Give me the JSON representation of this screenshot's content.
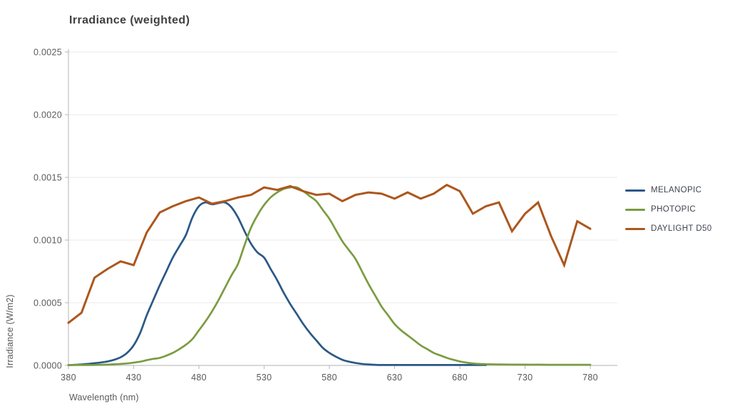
{
  "chart_data": {
    "type": "line",
    "title": "Irradiance (weighted)",
    "xlabel": "Wavelength (nm)",
    "ylabel": "Irradiance (W/m2)",
    "xlim": [
      380,
      780
    ],
    "ylim": [
      0,
      0.0025
    ],
    "x_ticks": [
      "380",
      "430",
      "480",
      "530",
      "580",
      "630",
      "680",
      "730",
      "780"
    ],
    "x_tick_values": [
      380,
      430,
      480,
      530,
      580,
      630,
      680,
      730,
      780
    ],
    "y_ticks": [
      "0.0000",
      "0.0005",
      "0.0010",
      "0.0015",
      "0.0020",
      "0.0025"
    ],
    "y_tick_values": [
      0,
      0.0005,
      0.001,
      0.0015,
      0.002,
      0.0025
    ],
    "grid": "horizontal",
    "legend_position": "right",
    "colors": {
      "axis": "#c0c0c0",
      "gridline": "#e8e8e8",
      "tick_text": "#595959",
      "title_text": "#404040",
      "legend_text": "#3f4450"
    },
    "series": [
      {
        "name": "MELANOPIC",
        "color": "#2b5886",
        "smooth": true,
        "points": [
          [
            380,
            3e-06
          ],
          [
            385,
            5e-06
          ],
          [
            390,
            8e-06
          ],
          [
            395,
            1.2e-05
          ],
          [
            400,
            1.8e-05
          ],
          [
            405,
            2.4e-05
          ],
          [
            410,
            3.2e-05
          ],
          [
            415,
            4.5e-05
          ],
          [
            420,
            6.5e-05
          ],
          [
            425,
            0.0001
          ],
          [
            430,
            0.00016
          ],
          [
            435,
            0.00026
          ],
          [
            440,
            0.0004
          ],
          [
            445,
            0.00052
          ],
          [
            450,
            0.00064
          ],
          [
            455,
            0.00075
          ],
          [
            460,
            0.00086
          ],
          [
            465,
            0.00095
          ],
          [
            470,
            0.00104
          ],
          [
            475,
            0.00118
          ],
          [
            480,
            0.00127
          ],
          [
            485,
            0.0013
          ],
          [
            490,
            0.001285
          ],
          [
            495,
            0.001295
          ],
          [
            500,
            0.0013
          ],
          [
            505,
            0.00126
          ],
          [
            510,
            0.00118
          ],
          [
            515,
            0.00107
          ],
          [
            520,
            0.00097
          ],
          [
            525,
            0.0009
          ],
          [
            530,
            0.00086
          ],
          [
            535,
            0.00077
          ],
          [
            540,
            0.00068
          ],
          [
            545,
            0.00058
          ],
          [
            550,
            0.00049
          ],
          [
            555,
            0.00041
          ],
          [
            560,
            0.00033
          ],
          [
            565,
            0.00026
          ],
          [
            570,
            0.0002
          ],
          [
            575,
            0.00014
          ],
          [
            580,
            0.0001
          ],
          [
            585,
            7e-05
          ],
          [
            590,
            4.5e-05
          ],
          [
            595,
            3e-05
          ],
          [
            600,
            2e-05
          ],
          [
            605,
            1.2e-05
          ],
          [
            610,
            8e-06
          ],
          [
            615,
            5e-06
          ],
          [
            620,
            3e-06
          ],
          [
            630,
            2e-06
          ],
          [
            640,
            1e-06
          ],
          [
            650,
            1e-06
          ],
          [
            660,
            1e-06
          ],
          [
            670,
            1e-06
          ],
          [
            680,
            1e-06
          ],
          [
            690,
            1e-06
          ],
          [
            700,
            1e-06
          ]
        ]
      },
      {
        "name": "PHOTOPIC",
        "color": "#7a9c41",
        "smooth": true,
        "points": [
          [
            380,
            2e-06
          ],
          [
            385,
            2e-06
          ],
          [
            390,
            3e-06
          ],
          [
            395,
            3e-06
          ],
          [
            400,
            4e-06
          ],
          [
            405,
            5e-06
          ],
          [
            410,
            7e-06
          ],
          [
            415,
            9e-06
          ],
          [
            420,
            1.2e-05
          ],
          [
            425,
            1.6e-05
          ],
          [
            430,
            2.2e-05
          ],
          [
            435,
            3e-05
          ],
          [
            440,
            4.2e-05
          ],
          [
            445,
            5.2e-05
          ],
          [
            450,
            6e-05
          ],
          [
            455,
            7.8e-05
          ],
          [
            460,
            0.0001
          ],
          [
            465,
            0.00013
          ],
          [
            470,
            0.000165
          ],
          [
            475,
            0.00021
          ],
          [
            480,
            0.00028
          ],
          [
            485,
            0.00035
          ],
          [
            490,
            0.00043
          ],
          [
            495,
            0.00052
          ],
          [
            500,
            0.00062
          ],
          [
            505,
            0.00072
          ],
          [
            510,
            0.00081
          ],
          [
            515,
            0.00096
          ],
          [
            520,
            0.0011
          ],
          [
            525,
            0.0012
          ],
          [
            530,
            0.00128
          ],
          [
            535,
            0.00134
          ],
          [
            540,
            0.00138
          ],
          [
            545,
            0.001408
          ],
          [
            550,
            0.00142
          ],
          [
            555,
            0.00142
          ],
          [
            560,
            0.00139
          ],
          [
            565,
            0.00135
          ],
          [
            570,
            0.00131
          ],
          [
            575,
            0.00124
          ],
          [
            580,
            0.00117
          ],
          [
            585,
            0.00108
          ],
          [
            590,
            0.00099
          ],
          [
            595,
            0.00092
          ],
          [
            600,
            0.00085
          ],
          [
            605,
            0.00075
          ],
          [
            610,
            0.00065
          ],
          [
            615,
            0.00056
          ],
          [
            620,
            0.00047
          ],
          [
            625,
            0.0004
          ],
          [
            630,
            0.00033
          ],
          [
            635,
            0.00028
          ],
          [
            640,
            0.00024
          ],
          [
            645,
            0.0002
          ],
          [
            650,
            0.00016
          ],
          [
            655,
            0.00013
          ],
          [
            660,
            0.0001
          ],
          [
            665,
            8e-05
          ],
          [
            670,
            6e-05
          ],
          [
            675,
            4.5e-05
          ],
          [
            680,
            3.2e-05
          ],
          [
            685,
            2.3e-05
          ],
          [
            690,
            1.6e-05
          ],
          [
            695,
            1.2e-05
          ],
          [
            700,
            1e-05
          ],
          [
            710,
            8e-06
          ],
          [
            720,
            7e-06
          ],
          [
            730,
            6e-06
          ],
          [
            740,
            6e-06
          ],
          [
            750,
            5e-06
          ],
          [
            760,
            5e-06
          ],
          [
            770,
            5e-06
          ],
          [
            780,
            5e-06
          ]
        ]
      },
      {
        "name": "DAYLIGHT D50",
        "color": "#ac571d",
        "smooth": false,
        "points": [
          [
            380,
            0.00034
          ],
          [
            390,
            0.00042
          ],
          [
            400,
            0.0007
          ],
          [
            410,
            0.00077
          ],
          [
            420,
            0.00083
          ],
          [
            430,
            0.0008
          ],
          [
            440,
            0.00106
          ],
          [
            450,
            0.00122
          ],
          [
            460,
            0.00127
          ],
          [
            470,
            0.00131
          ],
          [
            480,
            0.00134
          ],
          [
            490,
            0.00129
          ],
          [
            500,
            0.00131
          ],
          [
            510,
            0.00134
          ],
          [
            520,
            0.00136
          ],
          [
            530,
            0.00142
          ],
          [
            540,
            0.0014
          ],
          [
            550,
            0.00143
          ],
          [
            560,
            0.00139
          ],
          [
            570,
            0.00136
          ],
          [
            580,
            0.00137
          ],
          [
            590,
            0.00131
          ],
          [
            600,
            0.00136
          ],
          [
            610,
            0.00138
          ],
          [
            620,
            0.00137
          ],
          [
            630,
            0.00133
          ],
          [
            640,
            0.00138
          ],
          [
            650,
            0.00133
          ],
          [
            660,
            0.00137
          ],
          [
            670,
            0.00144
          ],
          [
            680,
            0.00139
          ],
          [
            690,
            0.00121
          ],
          [
            700,
            0.00127
          ],
          [
            710,
            0.0013
          ],
          [
            720,
            0.00107
          ],
          [
            730,
            0.00121
          ],
          [
            740,
            0.0013
          ],
          [
            750,
            0.00103
          ],
          [
            760,
            0.0008
          ],
          [
            770,
            0.00115
          ],
          [
            780,
            0.00109
          ]
        ]
      }
    ]
  }
}
